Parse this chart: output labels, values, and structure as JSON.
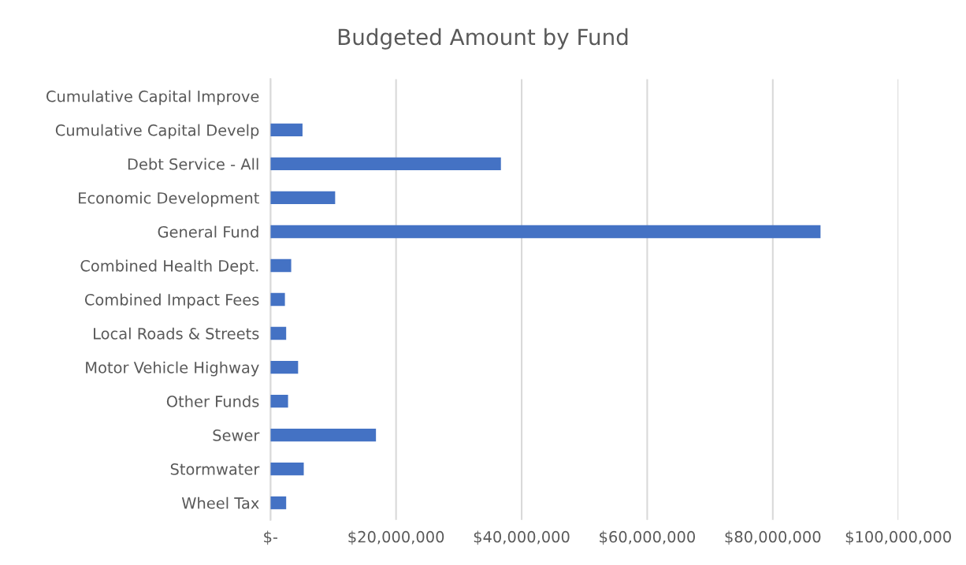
{
  "chart_data": {
    "type": "bar",
    "orientation": "horizontal",
    "title": "Budgeted Amount by Fund",
    "categories": [
      "Cumulative Capital Improve",
      "Cumulative Capital Develp",
      "Debt Service - All",
      "Economic Development",
      "General Fund",
      "Combined Health Dept.",
      "Combined Impact Fees",
      "Local Roads & Streets",
      "Motor Vehicle Highway",
      "Other Funds",
      "Sewer",
      "Stormwater",
      "Wheel Tax"
    ],
    "values": [
      0,
      5100000,
      36700000,
      10300000,
      87600000,
      3300000,
      2300000,
      2500000,
      4400000,
      2800000,
      16800000,
      5300000,
      2500000
    ],
    "color": "#4472c4",
    "xlim": [
      0,
      100000000
    ],
    "xticks": [
      {
        "value": 0,
        "label": "$-"
      },
      {
        "value": 20000000,
        "label": "$20,000,000"
      },
      {
        "value": 40000000,
        "label": "$40,000,000"
      },
      {
        "value": 60000000,
        "label": "$60,000,000"
      },
      {
        "value": 80000000,
        "label": "$80,000,000"
      },
      {
        "value": 100000000,
        "label": "$100,000,000"
      }
    ],
    "grid": "x",
    "legend": false
  }
}
